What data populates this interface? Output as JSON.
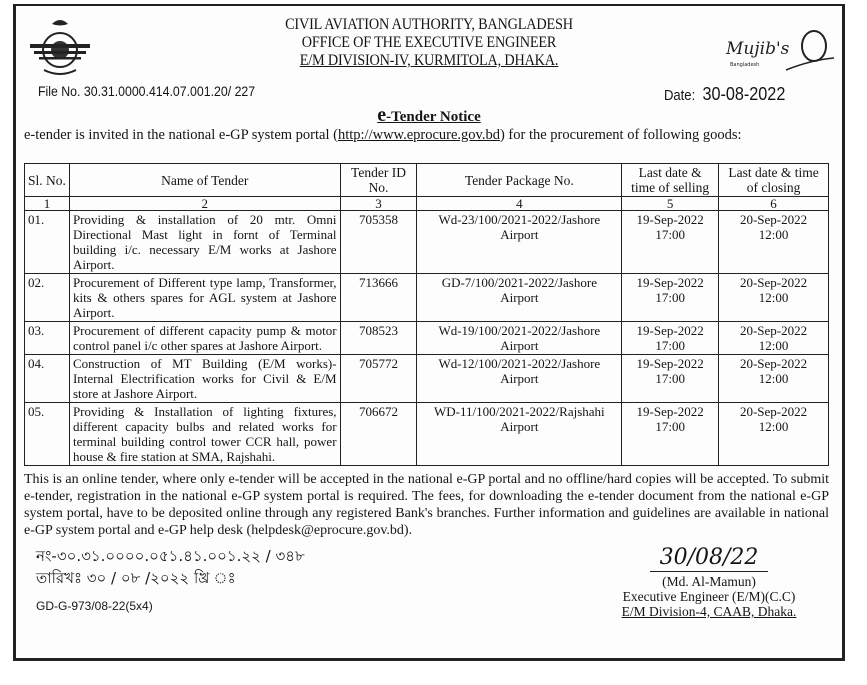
{
  "header": {
    "org": "CIVIL AVIATION AUTHORITY, BANGLADESH",
    "office": "OFFICE OF THE EXECUTIVE ENGINEER",
    "division": "E/M DIVISION-IV, KURMITOLA, DHAKA.",
    "emblem_logo": "Mujib's Bangladesh"
  },
  "file_no": "File No. 30.31.0000.414.07.001.20/ 227",
  "date_label": "Date:",
  "date_value": "30-08-2022",
  "title_e": "e",
  "title_rest": "-Tender Notice",
  "intro": {
    "before": "e-tender is invited in the national e-GP system portal (",
    "link": "http://www.eprocure.gov.bd",
    "after": ") for the procurement of following goods:"
  },
  "table": {
    "headers": [
      "Sl. No.",
      "Name of Tender",
      "Tender ID No.",
      "Tender Package No.",
      "Last date & time of selling",
      "Last date & time of closing"
    ],
    "col_numbers": [
      "1",
      "2",
      "3",
      "4",
      "5",
      "6"
    ],
    "rows": [
      {
        "sl": "01.",
        "name": "Providing & installation of 20 mtr. Omni Directional Mast light in fornt of Terminal building i/c. necessary E/M works at Jashore Airport.",
        "id": "705358",
        "package": "Wd-23/100/2021-2022/Jashore Airport",
        "selling": "19-Sep-2022 17:00",
        "closing": "20-Sep-2022 12:00"
      },
      {
        "sl": "02.",
        "name": "Procurement of Different type lamp, Transformer, kits & others spares for AGL system at Jashore Airport.",
        "id": "713666",
        "package": "GD-7/100/2021-2022/Jashore Airport",
        "selling": "19-Sep-2022 17:00",
        "closing": "20-Sep-2022 12:00"
      },
      {
        "sl": "03.",
        "name": "Procurement of different capacity pump & motor control panel i/c other spares at Jashore Airport.",
        "id": "708523",
        "package": "Wd-19/100/2021-2022/Jashore Airport",
        "selling": "19-Sep-2022 17:00",
        "closing": "20-Sep-2022 12:00"
      },
      {
        "sl": "04.",
        "name": "Construction of MT Building (E/M works)-Internal Electrification works for Civil & E/M store at Jashore Airport.",
        "id": "705772",
        "package": "Wd-12/100/2021-2022/Jashore Airport",
        "selling": "19-Sep-2022 17:00",
        "closing": "20-Sep-2022 12:00"
      },
      {
        "sl": "05.",
        "name": "Providing & Installation of lighting fixtures, different capacity bulbs and related works for terminal building control tower CCR hall, power house & fire station at SMA, Rajshahi.",
        "id": "706672",
        "package": "WD-11/100/2021-2022/Rajshahi Airport",
        "selling": "19-Sep-2022 17:00",
        "closing": "20-Sep-2022 12:00"
      }
    ]
  },
  "footer_text": "This is an online tender, where only e-tender will be accepted in the national e-GP portal and no offline/hard copies will be accepted. To submit e-tender, registration in the national e-GP system portal is required. The fees, for downloading the e-tender document from the national e-GP system portal, have to be deposited online through any registered Bank's branches. Further information and guidelines are available in national e-GP system portal and e-GP help desk (helpdesk@eprocure.gov.bd).",
  "memo_no_bn": "নং-৩০.৩১.০০০০.০৫১.৪১.০০১.২২ / ৩৪৮",
  "memo_date_bn": "তারিখঃ ৩০ / ০৮ /২০২২ খ্রি ঃ",
  "gd_code": "GD-G-973/08-22(5x4)",
  "signature": {
    "handwritten": "30/08/22",
    "name": "(Md. Al-Mamun)",
    "designation": "Executive Engineer (E/M)(C.C)",
    "office": "E/M Division-4, CAAB, Dhaka."
  }
}
